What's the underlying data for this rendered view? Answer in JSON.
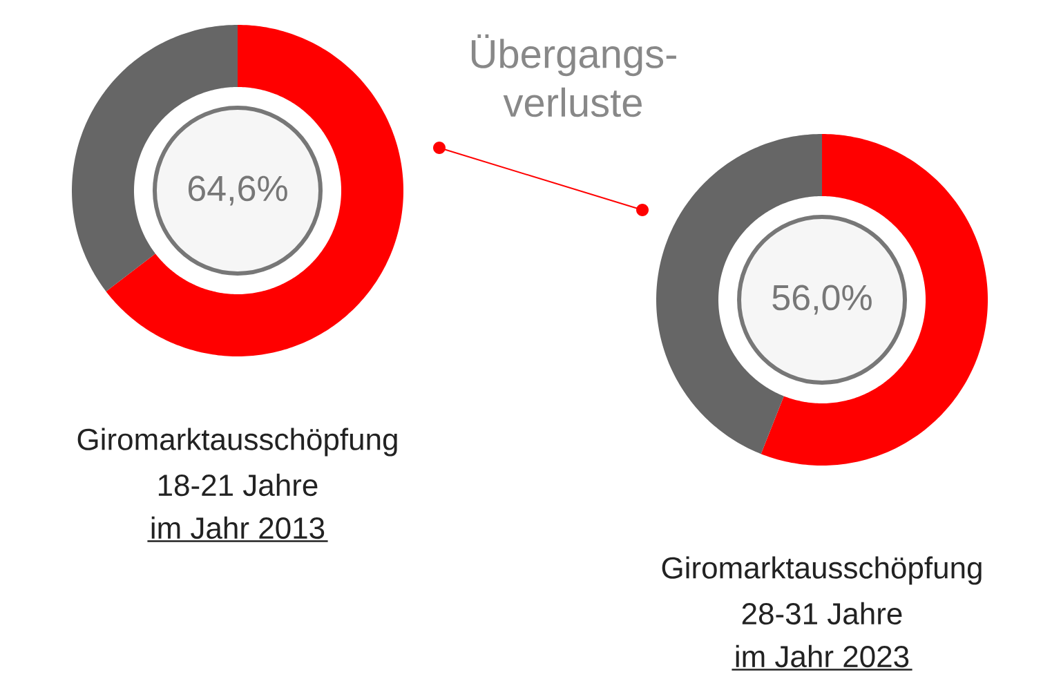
{
  "chart_data": [
    {
      "type": "donut",
      "categories": [
        null,
        null
      ],
      "values": [
        64.6,
        35.4
      ],
      "colors": [
        "#ff0000",
        "#666666"
      ],
      "value_labels": [
        "64,6%",
        null
      ],
      "annotations": [
        "Giromarktausschöpfung",
        "18-21 Jahre",
        "im Jahr 2013"
      ]
    },
    {
      "type": "other",
      "annotations": [
        "Übergangs-",
        "verluste"
      ]
    },
    {
      "type": "donut",
      "categories": [
        null,
        null
      ],
      "values": [
        56.0,
        44.0
      ],
      "colors": [
        "#ff0000",
        "#666666"
      ],
      "value_labels": [
        "56,0%",
        null
      ],
      "annotations": [
        "Giromarktausschöpfung",
        "28-31 Jahre",
        "im Jahr 2023"
      ]
    }
  ]
}
